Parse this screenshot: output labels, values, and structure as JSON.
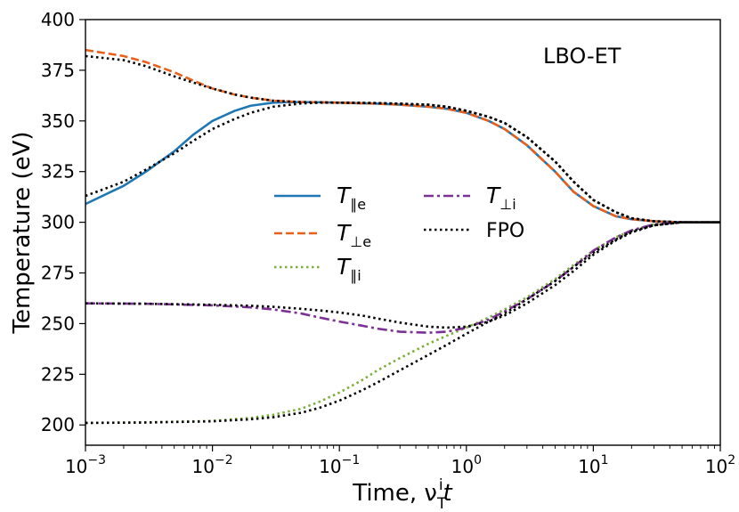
{
  "chart_data": {
    "type": "line",
    "annotation": "LBO-ET",
    "xlabel": "Time, ν",
    "xlabel_sup": "i",
    "xlabel_sub": "T",
    "xlabel_tail": "t",
    "ylabel": "Temperature (eV)",
    "x_scale": "log",
    "xlim": [
      0.001,
      100
    ],
    "ylim": [
      190,
      400
    ],
    "grid": false,
    "legend_position": "center",
    "x_tick_labels": [
      {
        "base": "10",
        "exp": "−3"
      },
      {
        "base": "10",
        "exp": "−2"
      },
      {
        "base": "10",
        "exp": "−1"
      },
      {
        "base": "10",
        "exp": "0"
      },
      {
        "base": "10",
        "exp": "1"
      },
      {
        "base": "10",
        "exp": "2"
      }
    ],
    "y_ticks": [
      200,
      225,
      250,
      275,
      300,
      325,
      350,
      375,
      400
    ],
    "series": [
      {
        "name": "T∥e",
        "legend_main": "T",
        "legend_sub": "∥e",
        "color": "#1f77b4",
        "style": "solid",
        "x": [
          0.001,
          0.002,
          0.003,
          0.005,
          0.007,
          0.01,
          0.015,
          0.02,
          0.03,
          0.04,
          0.05,
          0.07,
          0.1,
          0.2,
          0.3,
          0.5,
          0.7,
          1,
          1.5,
          2,
          3,
          5,
          7,
          10,
          15,
          20,
          30,
          50,
          100
        ],
        "values": [
          309,
          318,
          325,
          335,
          343,
          350,
          355,
          357.5,
          359,
          359.3,
          359.3,
          359.2,
          359,
          358.5,
          358,
          357,
          356,
          354,
          350,
          346,
          338,
          325,
          315,
          308,
          303,
          301.5,
          300.5,
          300,
          300
        ]
      },
      {
        "name": "T⊥e",
        "legend_main": "T",
        "legend_sub": "⊥e",
        "color": "#e8601c",
        "style": "dashed",
        "x": [
          0.001,
          0.002,
          0.003,
          0.005,
          0.007,
          0.01,
          0.015,
          0.02,
          0.03,
          0.05,
          0.07,
          0.1,
          0.2,
          0.3,
          0.5,
          0.7,
          1,
          1.5,
          2,
          3,
          5,
          7,
          10,
          15,
          20,
          30,
          50,
          100
        ],
        "values": [
          385,
          382,
          379,
          374,
          370,
          366,
          363,
          361.5,
          360,
          359.3,
          359.2,
          359,
          358.5,
          358,
          357,
          356,
          354,
          350,
          346,
          338,
          325,
          315,
          308,
          303,
          301.5,
          300.5,
          300,
          300
        ]
      },
      {
        "name": "T∥i",
        "legend_main": "T",
        "legend_sub": "∥i",
        "color": "#7cae3a",
        "style": "dotted",
        "x": [
          0.001,
          0.003,
          0.01,
          0.02,
          0.03,
          0.05,
          0.07,
          0.1,
          0.15,
          0.2,
          0.3,
          0.5,
          0.7,
          1,
          1.5,
          2,
          3,
          5,
          7,
          10,
          15,
          20,
          30,
          50,
          100
        ],
        "values": [
          201,
          201.3,
          202,
          203.5,
          205,
          208,
          211.5,
          216,
          222,
          227,
          233,
          240,
          244,
          248,
          253,
          257,
          263,
          272,
          279,
          286,
          292.5,
          296,
          299,
          300,
          300
        ]
      },
      {
        "name": "T⊥i",
        "legend_main": "T",
        "legend_sub": "⊥i",
        "color": "#7b3294",
        "style": "dashdot",
        "x": [
          0.001,
          0.003,
          0.01,
          0.02,
          0.03,
          0.05,
          0.07,
          0.1,
          0.15,
          0.2,
          0.3,
          0.5,
          0.7,
          1,
          1.5,
          2,
          3,
          5,
          7,
          10,
          15,
          20,
          30,
          50,
          100
        ],
        "values": [
          260,
          259.8,
          259,
          258,
          257,
          255,
          253,
          251,
          249,
          247.5,
          246,
          245.5,
          246,
          248,
          252,
          256,
          262,
          271,
          278,
          286,
          292.5,
          296,
          299,
          300,
          300
        ]
      },
      {
        "name": "FPO",
        "legend_main": "FPO",
        "legend_sub": "",
        "color": "#000000",
        "style": "dotted_black",
        "x": [
          0.001,
          0.002,
          0.003,
          0.005,
          0.007,
          0.01,
          0.015,
          0.02,
          0.03,
          0.05,
          0.07,
          0.1,
          0.2,
          0.3,
          0.5,
          0.7,
          1,
          1.5,
          2,
          3,
          5,
          7,
          10,
          15,
          20,
          30,
          50,
          100
        ],
        "values": [
          313,
          320,
          326,
          334,
          340,
          346,
          351,
          354,
          357,
          358.6,
          359,
          359,
          358.8,
          358.5,
          358,
          357,
          355,
          352,
          349,
          342,
          330,
          320,
          311,
          305,
          302,
          300.5,
          300,
          300
        ]
      },
      {
        "name": "FPO",
        "legend_main": "",
        "legend_sub": "",
        "color": "#000000",
        "style": "dotted_black",
        "x": [
          0.001,
          0.002,
          0.003,
          0.005,
          0.007,
          0.01,
          0.015,
          0.02,
          0.03,
          0.05,
          0.07,
          0.1,
          0.2,
          0.3,
          0.5,
          0.7,
          1,
          1.5,
          2,
          3,
          5,
          7,
          10,
          15,
          20,
          30,
          50,
          100
        ],
        "values": [
          382,
          380,
          377,
          372,
          369,
          366,
          363,
          361.5,
          360,
          359.3,
          359.2,
          359,
          358.8,
          358.5,
          358,
          357,
          355,
          352,
          349,
          342,
          330,
          320,
          311,
          305,
          302,
          300.5,
          300,
          300
        ]
      },
      {
        "name": "FPO",
        "legend_main": "",
        "legend_sub": "",
        "color": "#000000",
        "style": "dotted_black",
        "x": [
          0.001,
          0.003,
          0.01,
          0.02,
          0.03,
          0.05,
          0.07,
          0.1,
          0.15,
          0.2,
          0.3,
          0.5,
          0.7,
          1,
          1.5,
          2,
          3,
          5,
          7,
          10,
          15,
          20,
          30,
          50,
          100
        ],
        "values": [
          260,
          259.8,
          259.3,
          258.8,
          258.3,
          257.3,
          256.5,
          255.5,
          254,
          252.5,
          250.5,
          248.5,
          248,
          248.5,
          251,
          254,
          260,
          269,
          276,
          284,
          291,
          295,
          298.5,
          300,
          300
        ]
      },
      {
        "name": "FPO",
        "legend_main": "",
        "legend_sub": "",
        "color": "#000000",
        "style": "dotted_black",
        "x": [
          0.001,
          0.003,
          0.01,
          0.02,
          0.03,
          0.05,
          0.07,
          0.1,
          0.15,
          0.2,
          0.3,
          0.5,
          0.7,
          1,
          1.5,
          2,
          3,
          5,
          7,
          10,
          15,
          20,
          30,
          50,
          100
        ],
        "values": [
          201,
          201.2,
          201.8,
          202.8,
          203.8,
          206,
          208.5,
          212,
          217,
          221,
          227,
          234.5,
          239.5,
          245,
          251,
          255,
          262,
          271,
          278,
          285,
          291.5,
          295.5,
          298.5,
          300,
          300
        ]
      }
    ]
  }
}
